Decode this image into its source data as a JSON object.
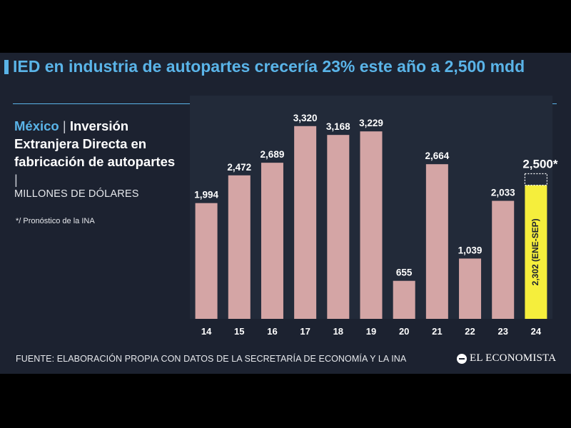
{
  "title": "IED en industria de autopartes crecería 23% este año a 2,500 mdd",
  "subtitle": {
    "country": "México",
    "separator": "|",
    "text": "Inversión Extranjera Directa en fabricación de autopartes",
    "separator2": "|",
    "units": "MILLONES DE DÓLARES"
  },
  "footnote": "*/ Pronóstico de la INA",
  "source": "FUENTE: ELABORACIÓN PROPIA CON DATOS DE LA SECRETARÍA DE ECONOMÍA Y LA INA",
  "logo": "EL ECONOMISTA",
  "colors": {
    "background": "#1c2230",
    "accent": "#5ab4e8",
    "bar": "#d4a5a5",
    "highlight": "#f5ee3c",
    "text": "#ffffff"
  },
  "chart_data": {
    "type": "bar",
    "categories": [
      "14",
      "15",
      "16",
      "17",
      "18",
      "19",
      "20",
      "21",
      "22",
      "23",
      "24"
    ],
    "values": [
      1994,
      2472,
      2689,
      3320,
      3168,
      3229,
      655,
      2664,
      1039,
      2033,
      2302
    ],
    "value_labels": [
      "1,994",
      "2,472",
      "2,689",
      "3,320",
      "3,168",
      "3,229",
      "655",
      "2,664",
      "1,039",
      "2,033",
      "2,302 (ENE-SEP)"
    ],
    "forecast": {
      "category": "24",
      "value": 2500,
      "label": "2,500*"
    },
    "xlabel": "",
    "ylabel": "",
    "ylim": [
      0,
      3600
    ],
    "grid": false,
    "legend": "none"
  }
}
